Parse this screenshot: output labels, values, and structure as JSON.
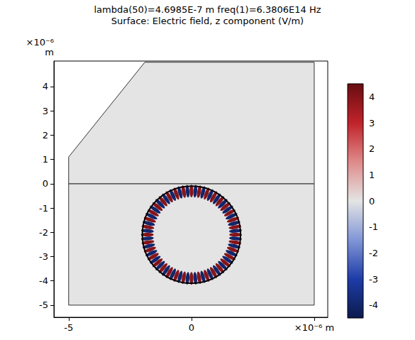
{
  "chart_data": {
    "type": "surface",
    "title": "lambda(50)=4.6985E-7 m freq(1)=6.3806E14 Hz",
    "subtitle": "Surface: Electric field, z component (V/m)",
    "ylabel": "×10⁻⁶ m",
    "xlim": [
      -5.6,
      5.55
    ],
    "xticks": [
      -5,
      0,
      {
        "value": 5,
        "label": "×10⁻⁶ m"
      }
    ],
    "ylim": [
      -5.5,
      5.05
    ],
    "yticks": [
      -5,
      -4,
      -3,
      -2,
      -1,
      0,
      1,
      2,
      3,
      4
    ],
    "regions": [
      [
        [
          -5,
          -5
        ],
        [
          5,
          -5
        ],
        [
          5,
          0
        ],
        [
          -5,
          0
        ]
      ],
      [
        [
          -5,
          0
        ],
        [
          5,
          0
        ],
        [
          5,
          5
        ],
        [
          -1.9,
          5
        ],
        [
          -5,
          1.1
        ]
      ]
    ],
    "circle": {
      "center": [
        0,
        -2.1
      ],
      "radius": 2.0
    },
    "mode": {
      "radius": 1.8,
      "angles": [
        0,
        5,
        10,
        15,
        20,
        25,
        30,
        35,
        40,
        45,
        50,
        55,
        60,
        65,
        70,
        75,
        80,
        85,
        90,
        95,
        100,
        105,
        110,
        115,
        120,
        125,
        130,
        135,
        140,
        145,
        150,
        155,
        160,
        165,
        170,
        175,
        180,
        185,
        190,
        195,
        200,
        205,
        210,
        215,
        220,
        225,
        230,
        235,
        240,
        245,
        250,
        255,
        260,
        265,
        270,
        275,
        280,
        285,
        290,
        295,
        300,
        305,
        310,
        315,
        320,
        325,
        330,
        335,
        340,
        345,
        350,
        355
      ],
      "values": [
        4,
        -4,
        4,
        -4,
        4,
        -4,
        4,
        -4,
        4,
        -4,
        4,
        -4,
        4,
        -4,
        4,
        -4,
        4,
        -4,
        4,
        -4,
        4,
        -4,
        4,
        -4,
        4,
        -4,
        4,
        -4,
        4,
        -4,
        4,
        -4,
        4,
        -4,
        4,
        -4,
        4,
        -4,
        4,
        -4,
        4,
        -4,
        4,
        -4,
        4,
        -4,
        4,
        -4,
        4,
        -4,
        4,
        -4,
        4,
        -4,
        4,
        -4,
        4,
        -4,
        4,
        -4,
        4,
        -4,
        4,
        -4,
        4,
        -4,
        4,
        -4,
        4,
        -4,
        4,
        -4
      ]
    },
    "colorbar": {
      "range": [
        -4.5,
        4.5
      ],
      "ticks": [
        -4,
        -3,
        -2,
        -1,
        0,
        1,
        2,
        3,
        4
      ]
    }
  }
}
